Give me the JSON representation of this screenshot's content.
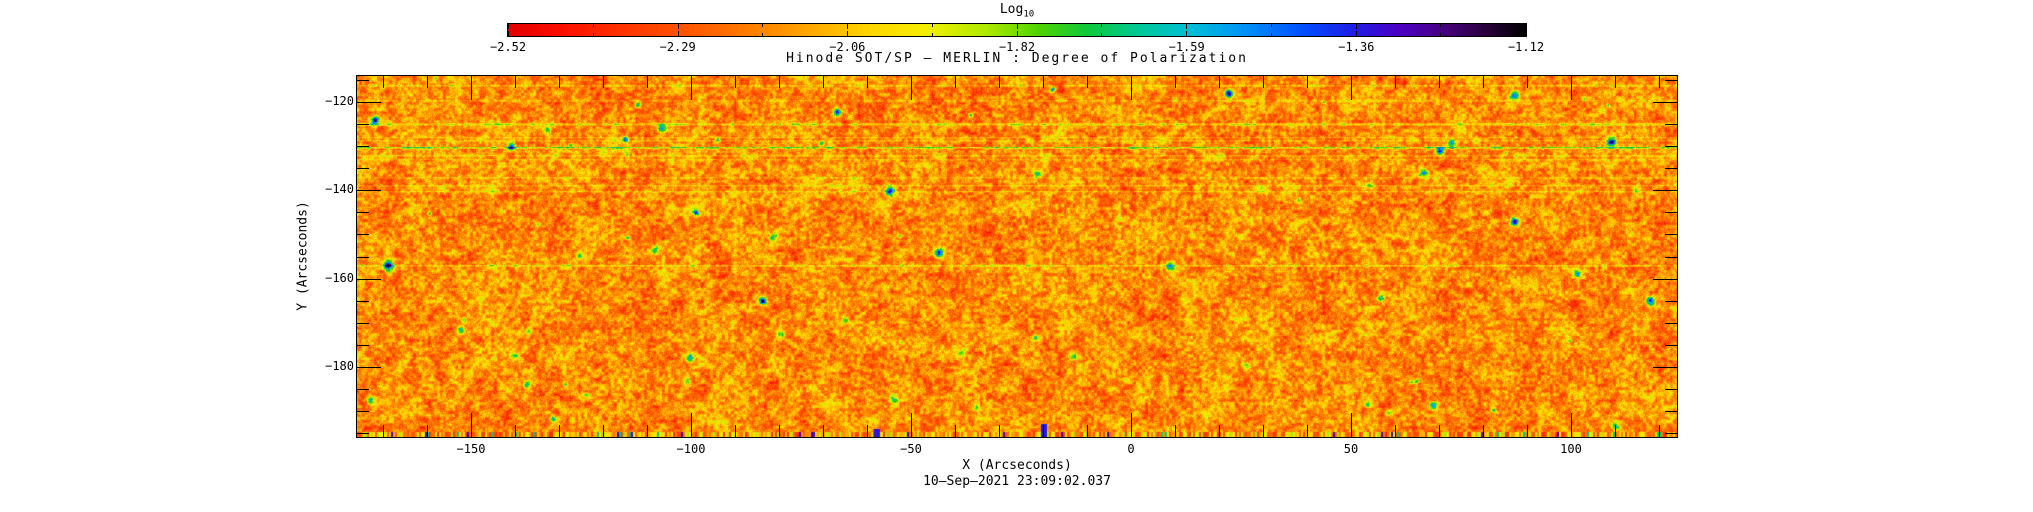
{
  "page": {
    "background": "#ffffff",
    "text_color": "#000000"
  },
  "chart_data": {
    "type": "heatmap",
    "title": "Hinode SOT/SP – MERLIN : Degree of Polarization",
    "xlabel": "X (Arcseconds)",
    "ylabel": "Y (Arcseconds)",
    "annotation": "10–Sep–2021 23:09:02.037",
    "x_range": [
      -176,
      124
    ],
    "y_range": [
      -196,
      -114
    ],
    "x_ticks": {
      "major_values": [
        -150,
        -100,
        -50,
        0,
        50,
        100
      ],
      "major_labels": [
        "−150",
        "−100",
        "−50",
        "0",
        "50",
        "100"
      ],
      "minor_step": 10
    },
    "y_ticks": {
      "major_values": [
        -120,
        -140,
        -160,
        -180
      ],
      "major_labels": [
        "−120",
        "−140",
        "−160",
        "−180"
      ],
      "minor_step": 5
    },
    "grid": false,
    "legend": "none",
    "colorbar": {
      "label": "Log",
      "label_sub": "10",
      "position": "top",
      "range": [
        -2.52,
        -1.12
      ],
      "tick_values": [
        -2.52,
        -2.29,
        -2.06,
        -1.82,
        -1.59,
        -1.36,
        -1.12
      ],
      "tick_labels": [
        "−2.52",
        "−2.29",
        "−2.06",
        "−1.82",
        "−1.59",
        "−1.36",
        "−1.12"
      ],
      "palette": [
        [
          0.0,
          "#e10000"
        ],
        [
          0.05,
          "#fb0d00"
        ],
        [
          0.12,
          "#ff3800"
        ],
        [
          0.2,
          "#ff6400"
        ],
        [
          0.28,
          "#ff9b00"
        ],
        [
          0.35,
          "#ffd200"
        ],
        [
          0.41,
          "#f5ef00"
        ],
        [
          0.47,
          "#adeb00"
        ],
        [
          0.52,
          "#50d400"
        ],
        [
          0.57,
          "#0ec83c"
        ],
        [
          0.62,
          "#00c896"
        ],
        [
          0.67,
          "#00bed7"
        ],
        [
          0.72,
          "#0096f5"
        ],
        [
          0.78,
          "#0050ff"
        ],
        [
          0.83,
          "#1e1ee6"
        ],
        [
          0.875,
          "#4b00c3"
        ],
        [
          0.92,
          "#46007d"
        ],
        [
          0.96,
          "#28003c"
        ],
        [
          1.0,
          "#000000"
        ]
      ]
    },
    "field_summary": {
      "description": "Log10 degree-of-polarization map of the quiet Sun; field dominated by weak polarization near −2.3 (red/orange) with granular yellow mottling, scattered green patches near −1.9 along the magnetic network, and rare cyan/blue/navy kilogauss elements approaching −1.12.",
      "dominant_log10_range": [
        -2.45,
        -2.15
      ],
      "speckle_log10_range": [
        -2.15,
        -1.95
      ],
      "network_patch_log10_range": [
        -1.95,
        -1.7
      ],
      "strong_element_log10_range": [
        -1.7,
        -1.12
      ],
      "artifacts": [
        "faint lighter horizontal scan-line streaks, mostly in upper half",
        "strip of saturated vertical color stripes along the bottom edge",
        "saturated blue columns at the bottom edge near x≈−58 and x≈−20"
      ],
      "bottom_blue_columns_x": [
        -58,
        -20
      ]
    },
    "notable_features_note": "approximate centers (arcseconds) of strongest cyan/blue/navy polarization patches",
    "notable_features": [
      {
        "x": -172,
        "y": -124
      },
      {
        "x": -141,
        "y": -130
      },
      {
        "x": -99,
        "y": -145
      },
      {
        "x": -169,
        "y": -157
      },
      {
        "x": -84,
        "y": -165
      },
      {
        "x": -67,
        "y": -122
      },
      {
        "x": -55,
        "y": -140
      },
      {
        "x": -44,
        "y": -154
      },
      {
        "x": -18,
        "y": -117
      },
      {
        "x": 22,
        "y": -118
      },
      {
        "x": 70,
        "y": -131
      },
      {
        "x": 87,
        "y": -147
      },
      {
        "x": 109,
        "y": -129
      },
      {
        "x": 118,
        "y": -165
      }
    ]
  }
}
